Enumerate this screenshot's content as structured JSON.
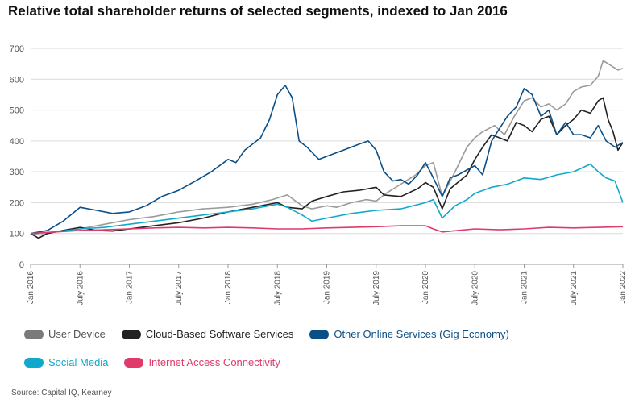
{
  "title": "Relative total shareholder returns of selected segments, indexed to Jan 2016",
  "source": "Source: Capital IQ, Kearney",
  "chart_data": {
    "type": "line",
    "title": "Relative total shareholder returns of selected segments, indexed to Jan 2016",
    "ylim": [
      0,
      700
    ],
    "yticks": [
      "0",
      "100",
      "200",
      "300",
      "400",
      "500",
      "600",
      "700"
    ],
    "xlim": [
      2016.0,
      2022.0
    ],
    "xticks": [
      {
        "label": "Jan 2016",
        "t": 2016.0
      },
      {
        "label": "July 2016",
        "t": 2016.5
      },
      {
        "label": "Jan 2017",
        "t": 2017.0
      },
      {
        "label": "July 2017",
        "t": 2017.5
      },
      {
        "label": "Jan 2018",
        "t": 2018.0
      },
      {
        "label": "July 2018",
        "t": 2018.5
      },
      {
        "label": "Jan 2019",
        "t": 2019.0
      },
      {
        "label": "July 2019",
        "t": 2019.5
      },
      {
        "label": "Jan 2020",
        "t": 2020.0
      },
      {
        "label": "July 2020",
        "t": 2020.5
      },
      {
        "label": "Jan 2021",
        "t": 2021.0
      },
      {
        "label": "July 2021",
        "t": 2021.5
      },
      {
        "label": "Jan 2022",
        "t": 2022.0
      }
    ],
    "grid": true,
    "legend_position": "bottom",
    "series": [
      {
        "name": "User Device",
        "color": "#9a9a9a",
        "points": [
          [
            2016.0,
            100
          ],
          [
            2016.1,
            95
          ],
          [
            2016.25,
            105
          ],
          [
            2016.5,
            115
          ],
          [
            2016.75,
            130
          ],
          [
            2017.0,
            145
          ],
          [
            2017.25,
            155
          ],
          [
            2017.5,
            170
          ],
          [
            2017.75,
            180
          ],
          [
            2018.0,
            185
          ],
          [
            2018.25,
            195
          ],
          [
            2018.45,
            210
          ],
          [
            2018.6,
            225
          ],
          [
            2018.75,
            190
          ],
          [
            2018.85,
            180
          ],
          [
            2019.0,
            190
          ],
          [
            2019.1,
            185
          ],
          [
            2019.25,
            200
          ],
          [
            2019.4,
            210
          ],
          [
            2019.5,
            205
          ],
          [
            2019.6,
            230
          ],
          [
            2019.75,
            260
          ],
          [
            2019.9,
            290
          ],
          [
            2020.0,
            320
          ],
          [
            2020.08,
            330
          ],
          [
            2020.17,
            220
          ],
          [
            2020.3,
            300
          ],
          [
            2020.42,
            380
          ],
          [
            2020.5,
            410
          ],
          [
            2020.58,
            430
          ],
          [
            2020.7,
            450
          ],
          [
            2020.8,
            420
          ],
          [
            2020.9,
            480
          ],
          [
            2021.0,
            530
          ],
          [
            2021.08,
            540
          ],
          [
            2021.17,
            510
          ],
          [
            2021.25,
            520
          ],
          [
            2021.33,
            500
          ],
          [
            2021.42,
            520
          ],
          [
            2021.5,
            560
          ],
          [
            2021.58,
            575
          ],
          [
            2021.67,
            580
          ],
          [
            2021.75,
            610
          ],
          [
            2021.8,
            660
          ],
          [
            2021.85,
            650
          ],
          [
            2021.9,
            640
          ],
          [
            2021.95,
            630
          ],
          [
            2022.0,
            635
          ]
        ]
      },
      {
        "name": "Cloud-Based Software Services",
        "color": "#222222",
        "points": [
          [
            2016.0,
            100
          ],
          [
            2016.08,
            85
          ],
          [
            2016.17,
            100
          ],
          [
            2016.33,
            110
          ],
          [
            2016.5,
            120
          ],
          [
            2016.67,
            110
          ],
          [
            2016.83,
            108
          ],
          [
            2017.0,
            115
          ],
          [
            2017.25,
            125
          ],
          [
            2017.5,
            135
          ],
          [
            2017.75,
            150
          ],
          [
            2018.0,
            170
          ],
          [
            2018.25,
            185
          ],
          [
            2018.5,
            200
          ],
          [
            2018.6,
            185
          ],
          [
            2018.75,
            180
          ],
          [
            2018.85,
            205
          ],
          [
            2019.0,
            220
          ],
          [
            2019.17,
            235
          ],
          [
            2019.33,
            240
          ],
          [
            2019.5,
            250
          ],
          [
            2019.58,
            225
          ],
          [
            2019.75,
            220
          ],
          [
            2019.92,
            245
          ],
          [
            2020.0,
            265
          ],
          [
            2020.08,
            250
          ],
          [
            2020.17,
            180
          ],
          [
            2020.25,
            245
          ],
          [
            2020.42,
            290
          ],
          [
            2020.5,
            340
          ],
          [
            2020.58,
            380
          ],
          [
            2020.67,
            420
          ],
          [
            2020.75,
            410
          ],
          [
            2020.83,
            400
          ],
          [
            2020.92,
            460
          ],
          [
            2021.0,
            450
          ],
          [
            2021.08,
            430
          ],
          [
            2021.17,
            470
          ],
          [
            2021.25,
            480
          ],
          [
            2021.33,
            420
          ],
          [
            2021.42,
            450
          ],
          [
            2021.5,
            470
          ],
          [
            2021.58,
            500
          ],
          [
            2021.67,
            490
          ],
          [
            2021.75,
            530
          ],
          [
            2021.8,
            540
          ],
          [
            2021.85,
            470
          ],
          [
            2021.9,
            430
          ],
          [
            2021.95,
            370
          ],
          [
            2022.0,
            395
          ]
        ]
      },
      {
        "name": "Other Online Services (Gig Economy)",
        "color": "#0b4f86",
        "points": [
          [
            2016.0,
            100
          ],
          [
            2016.17,
            110
          ],
          [
            2016.33,
            140
          ],
          [
            2016.5,
            185
          ],
          [
            2016.67,
            175
          ],
          [
            2016.83,
            165
          ],
          [
            2017.0,
            170
          ],
          [
            2017.17,
            190
          ],
          [
            2017.33,
            220
          ],
          [
            2017.5,
            240
          ],
          [
            2017.67,
            270
          ],
          [
            2017.83,
            300
          ],
          [
            2018.0,
            340
          ],
          [
            2018.08,
            330
          ],
          [
            2018.17,
            370
          ],
          [
            2018.33,
            410
          ],
          [
            2018.42,
            470
          ],
          [
            2018.5,
            550
          ],
          [
            2018.58,
            580
          ],
          [
            2018.65,
            540
          ],
          [
            2018.72,
            400
          ],
          [
            2018.8,
            380
          ],
          [
            2018.92,
            340
          ],
          [
            2019.0,
            350
          ],
          [
            2019.17,
            370
          ],
          [
            2019.33,
            390
          ],
          [
            2019.42,
            400
          ],
          [
            2019.5,
            370
          ],
          [
            2019.58,
            300
          ],
          [
            2019.67,
            270
          ],
          [
            2019.75,
            275
          ],
          [
            2019.83,
            260
          ],
          [
            2019.92,
            290
          ],
          [
            2020.0,
            330
          ],
          [
            2020.08,
            280
          ],
          [
            2020.17,
            220
          ],
          [
            2020.25,
            280
          ],
          [
            2020.33,
            290
          ],
          [
            2020.5,
            320
          ],
          [
            2020.58,
            290
          ],
          [
            2020.67,
            400
          ],
          [
            2020.75,
            440
          ],
          [
            2020.83,
            480
          ],
          [
            2020.92,
            510
          ],
          [
            2021.0,
            570
          ],
          [
            2021.08,
            550
          ],
          [
            2021.17,
            480
          ],
          [
            2021.25,
            500
          ],
          [
            2021.33,
            420
          ],
          [
            2021.42,
            460
          ],
          [
            2021.5,
            420
          ],
          [
            2021.58,
            420
          ],
          [
            2021.67,
            410
          ],
          [
            2021.75,
            450
          ],
          [
            2021.83,
            400
          ],
          [
            2021.92,
            380
          ],
          [
            2022.0,
            395
          ]
        ]
      },
      {
        "name": "Social Media",
        "color": "#10a9cc",
        "points": [
          [
            2016.0,
            100
          ],
          [
            2016.25,
            105
          ],
          [
            2016.5,
            115
          ],
          [
            2016.75,
            120
          ],
          [
            2017.0,
            130
          ],
          [
            2017.25,
            140
          ],
          [
            2017.5,
            150
          ],
          [
            2017.75,
            160
          ],
          [
            2018.0,
            170
          ],
          [
            2018.25,
            180
          ],
          [
            2018.5,
            195
          ],
          [
            2018.6,
            185
          ],
          [
            2018.75,
            160
          ],
          [
            2018.85,
            140
          ],
          [
            2019.0,
            150
          ],
          [
            2019.25,
            165
          ],
          [
            2019.5,
            175
          ],
          [
            2019.75,
            180
          ],
          [
            2020.0,
            200
          ],
          [
            2020.08,
            210
          ],
          [
            2020.17,
            150
          ],
          [
            2020.3,
            190
          ],
          [
            2020.42,
            210
          ],
          [
            2020.5,
            230
          ],
          [
            2020.67,
            250
          ],
          [
            2020.83,
            260
          ],
          [
            2021.0,
            280
          ],
          [
            2021.17,
            275
          ],
          [
            2021.33,
            290
          ],
          [
            2021.5,
            300
          ],
          [
            2021.67,
            325
          ],
          [
            2021.75,
            300
          ],
          [
            2021.83,
            280
          ],
          [
            2021.92,
            270
          ],
          [
            2022.0,
            200
          ]
        ]
      },
      {
        "name": "Internet Access Connectivity",
        "color": "#e03a6a",
        "points": [
          [
            2016.0,
            100
          ],
          [
            2016.25,
            105
          ],
          [
            2016.5,
            110
          ],
          [
            2016.75,
            112
          ],
          [
            2017.0,
            115
          ],
          [
            2017.25,
            118
          ],
          [
            2017.5,
            120
          ],
          [
            2017.75,
            118
          ],
          [
            2018.0,
            120
          ],
          [
            2018.25,
            118
          ],
          [
            2018.5,
            115
          ],
          [
            2018.75,
            115
          ],
          [
            2019.0,
            118
          ],
          [
            2019.25,
            120
          ],
          [
            2019.5,
            122
          ],
          [
            2019.75,
            125
          ],
          [
            2020.0,
            125
          ],
          [
            2020.08,
            115
          ],
          [
            2020.17,
            105
          ],
          [
            2020.33,
            110
          ],
          [
            2020.5,
            115
          ],
          [
            2020.75,
            112
          ],
          [
            2021.0,
            115
          ],
          [
            2021.25,
            120
          ],
          [
            2021.5,
            118
          ],
          [
            2021.75,
            120
          ],
          [
            2022.0,
            122
          ]
        ]
      }
    ]
  },
  "legend": {
    "row1": [
      {
        "label": "User Device",
        "color": "#7a7a7a"
      },
      {
        "label": "Cloud-Based Software Services",
        "color": "#222222"
      },
      {
        "label": "Other Online Services (Gig Economy)",
        "color": "#0b4f86"
      }
    ],
    "row2": [
      {
        "label": "Social Media",
        "color": "#10a9cc"
      },
      {
        "label": "Internet Access Connectivity",
        "color": "#e03a6a"
      }
    ]
  }
}
